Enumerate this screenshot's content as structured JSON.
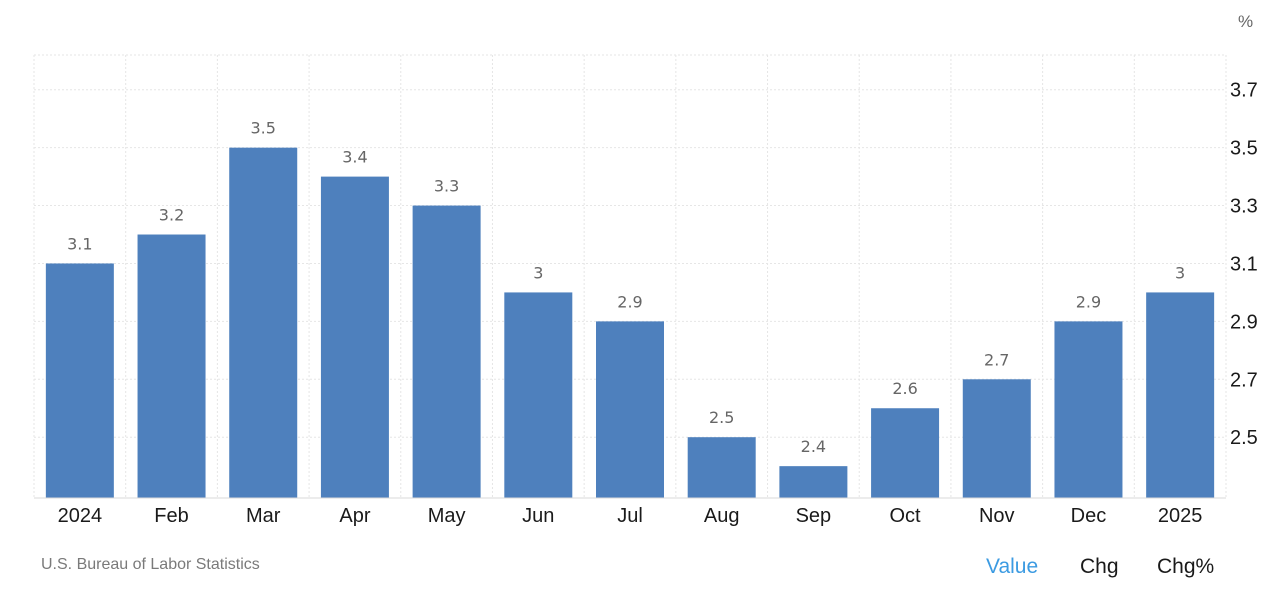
{
  "unit": "%",
  "source": "U.S. Bureau of Labor Statistics",
  "toggles": {
    "value": "Value",
    "chg": "Chg",
    "chg_pct": "Chg%",
    "active": "value"
  },
  "colors": {
    "bar": "#4e80bd",
    "grid": "#e6e6e6",
    "active_toggle": "#3c9be2"
  },
  "chart_data": {
    "type": "bar",
    "categories": [
      "2024",
      "Feb",
      "Mar",
      "Apr",
      "May",
      "Jun",
      "Jul",
      "Aug",
      "Sep",
      "Oct",
      "Nov",
      "Dec",
      "2025"
    ],
    "values": [
      3.1,
      3.2,
      3.5,
      3.4,
      3.3,
      3.0,
      2.9,
      2.5,
      2.4,
      2.6,
      2.7,
      2.9,
      3.0
    ],
    "data_labels": [
      "3.1",
      "3.2",
      "3.5",
      "3.4",
      "3.3",
      "3",
      "2.9",
      "2.5",
      "2.4",
      "2.6",
      "2.7",
      "2.9",
      "3"
    ],
    "ylim": [
      2.29,
      3.82
    ],
    "yticks": [
      2.5,
      2.7,
      2.9,
      3.1,
      3.3,
      3.5,
      3.7
    ],
    "ytick_labels": [
      "2.5",
      "2.7",
      "2.9",
      "3.1",
      "3.3",
      "3.5",
      "3.7"
    ],
    "y_axis_side": "right",
    "grid": true,
    "legend": "none"
  }
}
